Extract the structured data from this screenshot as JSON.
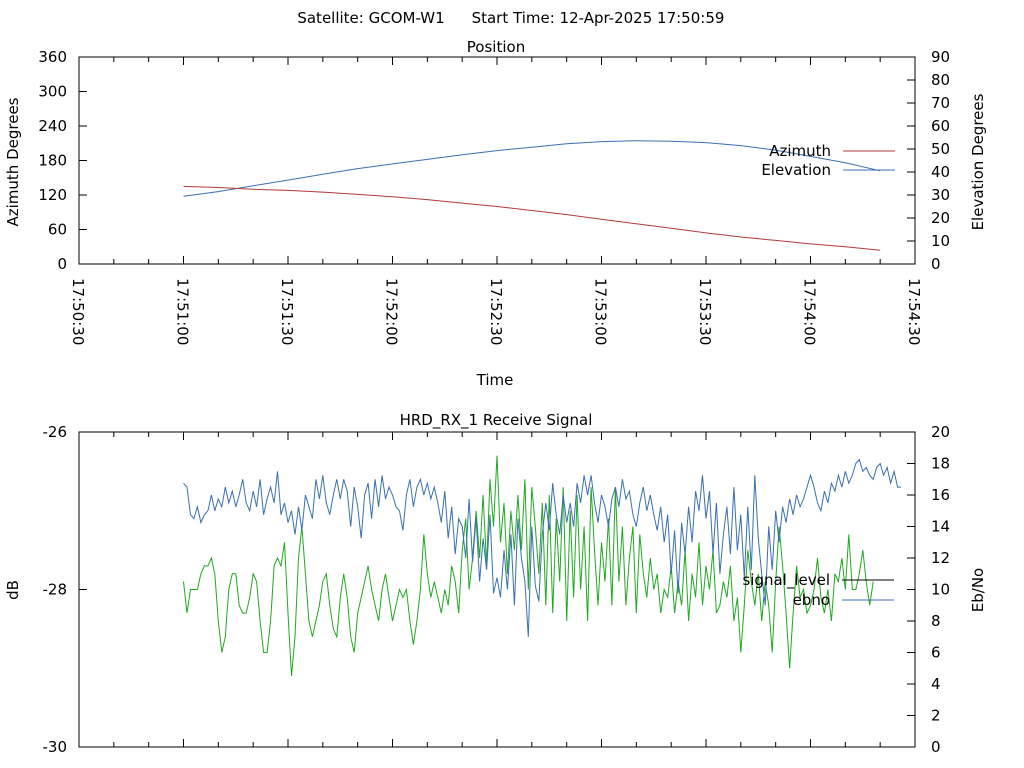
{
  "header": {
    "satellite": "Satellite: GCOM-W1",
    "start_time": "Start Time: 12-Apr-2025 17:50:59"
  },
  "chart_data": [
    {
      "type": "line",
      "title": "Position",
      "xlabel": "Time",
      "ylabel": "Azimuth Degrees",
      "y2label": "Elevation Degrees",
      "xlim": [
        "17:50:30",
        "17:54:30"
      ],
      "x_ticks": [
        "17:50:30",
        "17:51:00",
        "17:51:30",
        "17:52:00",
        "17:52:30",
        "17:53:00",
        "17:53:30",
        "17:54:00",
        "17:54:30"
      ],
      "ylim": [
        0,
        360
      ],
      "y_ticks": [
        "0",
        "60",
        "120",
        "180",
        "240",
        "300",
        "360"
      ],
      "y2lim": [
        0,
        90
      ],
      "y2_ticks": [
        "0",
        "10",
        "20",
        "30",
        "40",
        "50",
        "60",
        "70",
        "80",
        "90"
      ],
      "legend_position": "right",
      "grid": false,
      "series": [
        {
          "name": "Azimuth",
          "axis": "left",
          "color": "#b03a3a",
          "x": [
            "17:51:00",
            "17:51:10",
            "17:51:20",
            "17:51:30",
            "17:51:40",
            "17:51:50",
            "17:52:00",
            "17:52:10",
            "17:52:20",
            "17:52:30",
            "17:52:40",
            "17:52:50",
            "17:53:00",
            "17:53:10",
            "17:53:20",
            "17:53:30",
            "17:53:40",
            "17:53:50",
            "17:54:00",
            "17:54:10",
            "17:54:20"
          ],
          "values": [
            135,
            133,
            130,
            128,
            125,
            121,
            117,
            112,
            106,
            100,
            93,
            86,
            78,
            70,
            62,
            54,
            47,
            41,
            35,
            30,
            24
          ]
        },
        {
          "name": "Elevation",
          "axis": "right",
          "color": "#3a6fb0",
          "x": [
            "17:51:00",
            "17:51:10",
            "17:51:20",
            "17:51:30",
            "17:51:40",
            "17:51:50",
            "17:52:00",
            "17:52:10",
            "17:52:20",
            "17:52:30",
            "17:52:40",
            "17:52:50",
            "17:53:00",
            "17:53:10",
            "17:53:20",
            "17:53:30",
            "17:53:40",
            "17:53:50",
            "17:54:00",
            "17:54:10",
            "17:54:20"
          ],
          "values": [
            29.5,
            31.5,
            34,
            36.5,
            39,
            41.5,
            43.5,
            45.5,
            47.5,
            49.3,
            50.8,
            52.3,
            53.2,
            53.6,
            53.4,
            52.8,
            51.5,
            49.5,
            46.8,
            44,
            40.5
          ]
        }
      ]
    },
    {
      "type": "line",
      "title": "HRD_RX_1 Receive Signal",
      "xlabel": "",
      "ylabel": "dB",
      "y2label": "Eb/No",
      "xlim": [
        "17:50:30",
        "17:54:30"
      ],
      "ylim": [
        -30,
        -26
      ],
      "y_ticks": [
        "-26",
        "-28",
        "-30"
      ],
      "y2lim": [
        0,
        20
      ],
      "y2_ticks": [
        "0",
        "2",
        "4",
        "6",
        "8",
        "10",
        "12",
        "14",
        "16",
        "18",
        "20"
      ],
      "legend_position": "right",
      "grid": false,
      "series": [
        {
          "name": "signal_level",
          "axis": "left",
          "color": "#3a6fb0",
          "x_start": "17:51:00",
          "x_step_seconds": 1,
          "values": [
            -26.65,
            -26.7,
            -27.05,
            -27.1,
            -26.95,
            -27.15,
            -27.05,
            -27.0,
            -26.8,
            -27.0,
            -26.85,
            -26.95,
            -26.7,
            -26.9,
            -26.75,
            -26.95,
            -26.8,
            -26.6,
            -26.9,
            -27.0,
            -26.75,
            -26.95,
            -26.6,
            -27.05,
            -26.85,
            -26.7,
            -26.9,
            -26.5,
            -27.05,
            -26.9,
            -27.15,
            -27.0,
            -27.3,
            -26.95,
            -27.25,
            -26.8,
            -26.95,
            -27.1,
            -26.6,
            -26.85,
            -26.55,
            -26.9,
            -27.05,
            -26.8,
            -26.6,
            -26.85,
            -26.6,
            -26.75,
            -27.2,
            -26.7,
            -26.95,
            -27.35,
            -26.8,
            -26.65,
            -27.1,
            -26.6,
            -26.95,
            -26.55,
            -26.85,
            -26.7,
            -26.8,
            -26.95,
            -27.0,
            -27.25,
            -26.8,
            -26.6,
            -26.95,
            -26.7,
            -26.6,
            -26.8,
            -26.65,
            -26.85,
            -26.7,
            -26.9,
            -27.15,
            -26.75,
            -27.35,
            -26.95,
            -27.55,
            -27.1,
            -27.2,
            -27.6,
            -26.85,
            -27.65,
            -27.1,
            -27.9,
            -27.35,
            -27.75,
            -27.05,
            -28.05,
            -27.85,
            -28.1,
            -27.5,
            -28.0,
            -27.3,
            -28.2,
            -27.1,
            -27.6,
            -27.9,
            -28.6,
            -27.2,
            -27.95,
            -28.15,
            -27.3,
            -26.9,
            -27.25,
            -26.65,
            -27.05,
            -27.3,
            -26.8,
            -27.15,
            -26.9,
            -27.2,
            -26.65,
            -26.9,
            -26.55,
            -26.8,
            -26.55,
            -26.9,
            -27.15,
            -26.8,
            -26.95,
            -27.2,
            -26.85,
            -26.7,
            -26.95,
            -26.6,
            -26.85,
            -26.75,
            -27.05,
            -27.2,
            -26.9,
            -26.7,
            -27.0,
            -26.8,
            -27.05,
            -27.25,
            -26.95,
            -27.4,
            -27.05,
            -27.8,
            -27.25,
            -28.05,
            -27.15,
            -27.55,
            -26.95,
            -27.4,
            -26.75,
            -27.0,
            -26.55,
            -27.1,
            -26.75,
            -27.55,
            -26.9,
            -27.8,
            -27.3,
            -26.95,
            -27.55,
            -26.7,
            -27.5,
            -27.05,
            -27.85,
            -26.95,
            -27.75,
            -26.55,
            -27.35,
            -27.8,
            -28.2,
            -27.2,
            -27.75,
            -27.0,
            -27.4,
            -26.95,
            -27.15,
            -26.85,
            -27.05,
            -26.8,
            -26.95,
            -26.85,
            -26.7,
            -26.55,
            -26.7,
            -26.9,
            -27.0,
            -26.75,
            -26.9,
            -26.65,
            -26.75,
            -26.55,
            -26.7,
            -26.5,
            -26.65,
            -26.55,
            -26.4,
            -26.35,
            -26.5,
            -26.45,
            -26.55,
            -26.6,
            -26.45,
            -26.4,
            -26.55,
            -26.45,
            -26.65,
            -26.5,
            -26.7,
            -26.7
          ]
        },
        {
          "name": "ebno",
          "axis": "right",
          "color": "#20a820",
          "x_start": "17:51:00",
          "x_step_seconds": 1,
          "values": [
            10.5,
            8.5,
            10.0,
            10.0,
            10.0,
            11.0,
            11.5,
            11.5,
            12.0,
            11.0,
            8.0,
            6.0,
            7.0,
            10.0,
            11.0,
            11.0,
            9.0,
            8.5,
            8.5,
            9.5,
            11.0,
            10.5,
            8.0,
            6.0,
            6.0,
            8.0,
            11.5,
            12.0,
            11.5,
            13.0,
            8.5,
            4.5,
            7.0,
            12.0,
            14.0,
            11.0,
            8.0,
            7.0,
            8.0,
            9.0,
            10.5,
            11.0,
            9.0,
            7.5,
            7.0,
            9.5,
            11.0,
            9.5,
            7.0,
            6.0,
            8.5,
            9.5,
            10.5,
            11.5,
            10.0,
            9.0,
            8.0,
            10.0,
            11.0,
            9.5,
            8.0,
            9.0,
            10.0,
            9.5,
            10.0,
            8.0,
            6.5,
            8.0,
            10.0,
            13.5,
            11.0,
            9.5,
            10.5,
            9.5,
            8.5,
            10.0,
            9.0,
            11.5,
            10.5,
            8.5,
            12.5,
            14.5,
            10.0,
            12.0,
            15.0,
            12.0,
            16.0,
            11.5,
            17.0,
            14.0,
            18.5,
            13.0,
            15.5,
            11.0,
            15.0,
            12.5,
            16.0,
            12.5,
            17.0,
            10.0,
            16.5,
            14.0,
            11.0,
            15.5,
            9.0,
            16.0,
            8.5,
            14.5,
            10.5,
            16.5,
            8.0,
            15.0,
            9.5,
            16.0,
            10.0,
            14.0,
            8.0,
            16.5,
            12.5,
            9.0,
            13.0,
            10.5,
            14.5,
            9.0,
            16.5,
            10.5,
            14.0,
            9.0,
            12.0,
            14.0,
            8.5,
            13.5,
            11.0,
            9.5,
            12.0,
            10.0,
            11.0,
            8.5,
            10.0,
            9.5,
            11.5,
            8.5,
            10.5,
            9.0,
            12.5,
            8.0,
            11.0,
            9.5,
            13.0,
            9.0,
            11.5,
            10.0,
            12.5,
            8.5,
            9.0,
            10.5,
            9.5,
            11.5,
            8.0,
            9.5,
            6.0,
            9.0,
            12.5,
            10.5,
            9.0,
            11.0,
            8.0,
            10.5,
            9.0,
            6.0,
            10.5,
            14.0,
            11.5,
            8.5,
            5.0,
            8.5,
            11.5,
            9.5,
            10.0,
            8.5,
            9.0,
            10.0,
            12.0,
            9.5,
            8.5,
            10.0,
            8.0,
            11.0,
            10.5,
            12.0,
            10.0,
            13.5,
            10.0,
            10.0,
            11.0,
            12.5,
            10.5,
            9.0,
            10.5
          ]
        }
      ]
    }
  ]
}
